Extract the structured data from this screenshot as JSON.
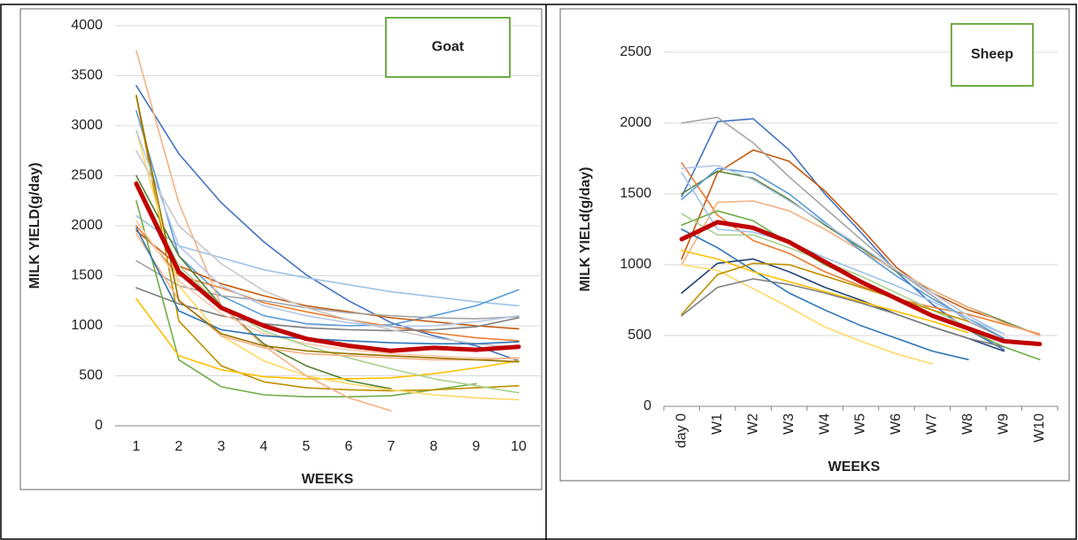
{
  "chart_data": [
    {
      "type": "line",
      "title": "Goat",
      "y_label": "MILK YIELD(g/day)",
      "x_label": "WEEKS",
      "categories": [
        "1",
        "2",
        "3",
        "4",
        "5",
        "6",
        "7",
        "8",
        "9",
        "10"
      ],
      "ylim": [
        0,
        4000
      ],
      "yticks": [
        0,
        500,
        1000,
        1500,
        2000,
        2500,
        3000,
        3500,
        4000
      ],
      "grid": true,
      "series": [
        {
          "color": "#4472c4",
          "values": [
            3400,
            2720,
            2230,
            1840,
            1510,
            1250,
            1030,
            900,
            800,
            650
          ]
        },
        {
          "color": "#9dc3e6",
          "values": [
            2100,
            1800,
            1680,
            1560,
            1480,
            1410,
            1340,
            1290,
            1240,
            1200
          ]
        },
        {
          "color": "#5b9bd5",
          "values": [
            3150,
            1700,
            1300,
            1100,
            1020,
            1000,
            1010,
            1100,
            1200,
            1360
          ]
        },
        {
          "color": "#c55a11",
          "values": [
            1950,
            1600,
            1420,
            1300,
            1200,
            1140,
            1080,
            1040,
            1000,
            970
          ]
        },
        {
          "color": "#ed7d31",
          "values": [
            2000,
            1500,
            1380,
            1230,
            1140,
            1060,
            990,
            930,
            880,
            850
          ]
        },
        {
          "color": "#a5a5a5",
          "values": [
            1650,
            1400,
            1300,
            1250,
            1180,
            1130,
            1100,
            1080,
            1070,
            1090
          ]
        },
        {
          "color": "#7f7f7f",
          "values": [
            1380,
            1220,
            1100,
            1020,
            980,
            960,
            950,
            960,
            990,
            1080
          ]
        },
        {
          "color": "#70ad47",
          "values": [
            2250,
            660,
            390,
            310,
            290,
            290,
            300,
            360,
            420,
            null
          ]
        },
        {
          "color": "#548235",
          "values": [
            2500,
            1700,
            1200,
            820,
            600,
            450,
            370,
            null,
            null,
            null
          ]
        },
        {
          "color": "#bf9000",
          "values": [
            3300,
            1050,
            600,
            440,
            380,
            360,
            350,
            360,
            380,
            400
          ]
        },
        {
          "color": "#ffc000",
          "values": [
            1270,
            700,
            560,
            490,
            470,
            470,
            480,
            520,
            580,
            650
          ]
        },
        {
          "color": "#ffd966",
          "values": [
            2950,
            1400,
            900,
            650,
            500,
            420,
            360,
            310,
            280,
            260
          ]
        },
        {
          "color": "#f4b183",
          "values": [
            3750,
            2230,
            1200,
            800,
            500,
            280,
            150,
            null,
            null,
            null
          ]
        },
        {
          "color": "#f8cbad",
          "values": [
            2050,
            1450,
            1120,
            920,
            820,
            760,
            720,
            700,
            680,
            670
          ]
        },
        {
          "color": "#c9c9c9",
          "values": [
            2750,
            2000,
            1620,
            1350,
            1180,
            1060,
            960,
            880,
            820,
            780
          ]
        },
        {
          "color": "#b4c7e7",
          "values": [
            2950,
            1800,
            1400,
            1200,
            1100,
            1030,
            990,
            1000,
            1040,
            1100
          ]
        },
        {
          "color": "#a9d18e",
          "values": [
            2450,
            1600,
            1200,
            950,
            800,
            680,
            570,
            470,
            400,
            330
          ]
        },
        {
          "color": "#f4b183",
          "values": [
            1920,
            1260,
            900,
            780,
            720,
            700,
            680,
            660,
            660,
            680
          ]
        },
        {
          "color": "#2e75b6",
          "values": [
            1980,
            1150,
            960,
            900,
            870,
            850,
            830,
            820,
            820,
            840
          ]
        },
        {
          "color": "#997300",
          "values": [
            3300,
            1250,
            920,
            800,
            750,
            720,
            700,
            680,
            660,
            640
          ]
        },
        {
          "color": "#c00000",
          "line_width": 5,
          "values": [
            2420,
            1540,
            1180,
            1000,
            870,
            800,
            750,
            780,
            760,
            790
          ]
        }
      ]
    },
    {
      "type": "line",
      "title": "Sheep",
      "y_label": "MILK YIELd(g/day)",
      "x_label": "WEEKS",
      "categories": [
        "day 0",
        "W1",
        "W2",
        "W3",
        "W4",
        "W5",
        "W6",
        "W7",
        "W8",
        "W9",
        "W10"
      ],
      "ylim": [
        0,
        2500
      ],
      "yticks": [
        0,
        500,
        1000,
        1500,
        2000,
        2500
      ],
      "grid": true,
      "series": [
        {
          "color": "#4472c4",
          "values": [
            1480,
            2010,
            2030,
            1810,
            1500,
            1230,
            950,
            720,
            540,
            400,
            null
          ]
        },
        {
          "color": "#c55a11",
          "values": [
            1040,
            1650,
            1810,
            1730,
            1520,
            1260,
            980,
            800,
            680,
            600,
            null
          ]
        },
        {
          "color": "#a5a5a5",
          "values": [
            2000,
            2040,
            1860,
            1620,
            1400,
            1180,
            960,
            780,
            600,
            480,
            null
          ]
        },
        {
          "color": "#548235",
          "values": [
            1500,
            1660,
            1610,
            1460,
            1280,
            1120,
            950,
            820,
            700,
            600,
            500
          ]
        },
        {
          "color": "#ed7d31",
          "values": [
            1720,
            1350,
            1170,
            1080,
            950,
            850,
            760,
            700,
            650,
            580,
            510
          ]
        },
        {
          "color": "#f4b183",
          "values": [
            1000,
            1440,
            1450,
            1380,
            1250,
            1100,
            960,
            820,
            700,
            590,
            500
          ]
        },
        {
          "color": "#70ad47",
          "values": [
            1280,
            1380,
            1310,
            1150,
            1000,
            880,
            760,
            640,
            540,
            420,
            330
          ]
        },
        {
          "color": "#a9d18e",
          "values": [
            1360,
            1210,
            1210,
            1120,
            1020,
            920,
            800,
            680,
            560,
            450,
            null
          ]
        },
        {
          "color": "#5b9bd5",
          "values": [
            1460,
            1680,
            1650,
            1500,
            1300,
            1100,
            920,
            760,
            620,
            480,
            null
          ]
        },
        {
          "color": "#2e75b6",
          "values": [
            1250,
            1120,
            960,
            800,
            680,
            570,
            480,
            390,
            330,
            null,
            null
          ]
        },
        {
          "color": "#264478",
          "values": [
            800,
            1010,
            1040,
            950,
            840,
            750,
            650,
            560,
            480,
            390,
            null
          ]
        },
        {
          "color": "#ffc000",
          "values": [
            1100,
            1040,
            950,
            880,
            810,
            740,
            670,
            600,
            520,
            null,
            null
          ]
        },
        {
          "color": "#ffd966",
          "values": [
            1000,
            960,
            830,
            700,
            560,
            460,
            370,
            300,
            null,
            null,
            null
          ]
        },
        {
          "color": "#7f7f7f",
          "values": [
            640,
            840,
            900,
            860,
            800,
            730,
            650,
            560,
            480,
            420,
            null
          ]
        },
        {
          "color": "#bf9000",
          "values": [
            650,
            930,
            1010,
            1000,
            920,
            840,
            760,
            680,
            600,
            null,
            null
          ]
        },
        {
          "color": "#9dc3e6",
          "values": [
            1650,
            1250,
            1230,
            1160,
            1050,
            950,
            850,
            740,
            620,
            510,
            null
          ]
        },
        {
          "color": "#b4c7e7",
          "values": [
            1680,
            1700,
            1600,
            1450,
            1290,
            1130,
            960,
            800,
            640,
            510,
            null
          ]
        },
        {
          "color": "#c00000",
          "line_width": 5,
          "values": [
            1180,
            1300,
            1260,
            1160,
            1020,
            880,
            760,
            640,
            550,
            460,
            440
          ]
        }
      ]
    }
  ]
}
